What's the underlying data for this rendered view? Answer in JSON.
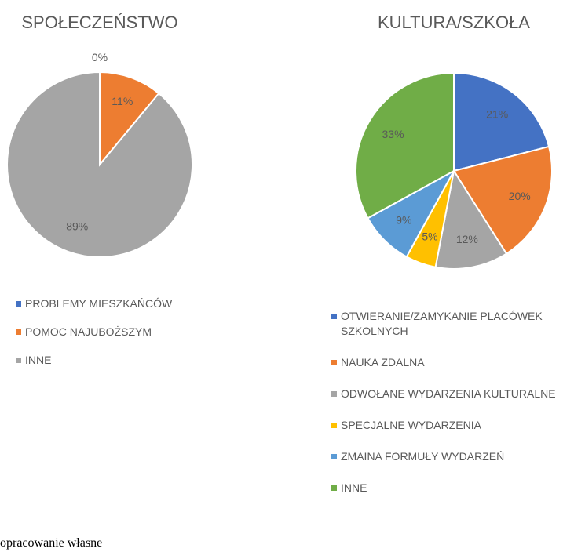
{
  "chart_data": [
    {
      "type": "pie",
      "title": "SPOŁECZEŃSTWO",
      "categories": [
        "PROBLEMY MIESZKAŃCÓW",
        "POMOC NAJUBOŻSZYM",
        "INNE"
      ],
      "values": [
        0,
        11,
        89
      ],
      "value_labels": [
        "0%",
        "11%",
        "89%"
      ],
      "colors": [
        "#4472c4",
        "#ed7d31",
        "#a5a5a5"
      ],
      "legend": "bottom"
    },
    {
      "type": "pie",
      "title": "KULTURA/SZKOŁA",
      "categories": [
        "OTWIERANIE/ZAMYKANIE PLACÓWEK SZKOLNYCH",
        "NAUKA ZDALNA",
        "ODWOŁANE WYDARZENIA KULTURALNE",
        "SPECJALNE WYDARZENIA",
        "ZMAINA FORMUŁY WYDARZEŃ",
        "INNE"
      ],
      "values": [
        21,
        20,
        12,
        5,
        9,
        33
      ],
      "value_labels": [
        "21%",
        "20%",
        "12%",
        "5%",
        "9%",
        "33%"
      ],
      "colors": [
        "#4472c4",
        "#ed7d31",
        "#a5a5a5",
        "#ffc000",
        "#5b9bd5",
        "#70ad47"
      ],
      "legend": "bottom"
    }
  ],
  "source": "opracowanie własne"
}
